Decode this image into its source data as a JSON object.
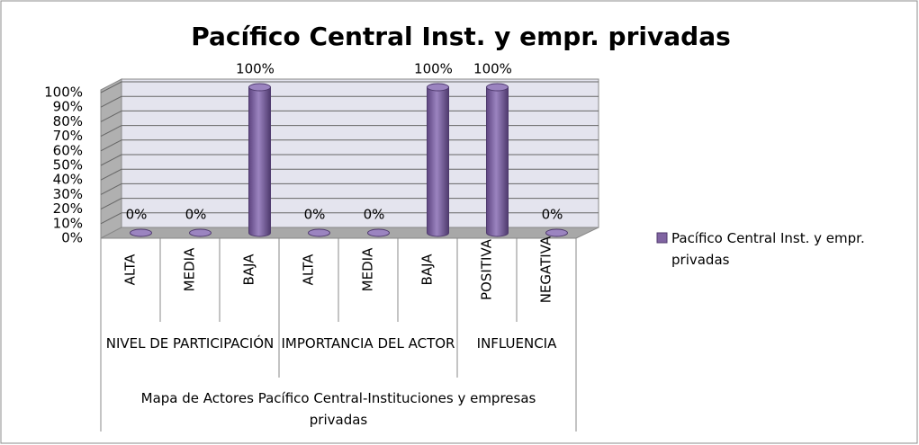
{
  "chart_data": {
    "type": "bar3d",
    "title": "Pacífico Central Inst. y empr. privadas",
    "groups": [
      {
        "label": "NIVEL DE PARTICIPACIÓN",
        "categories": [
          "ALTA",
          "MEDIA",
          "BAJA"
        ]
      },
      {
        "label": "IMPORTANCIA DEL ACTOR",
        "categories": [
          "ALTA",
          "MEDIA",
          "BAJA"
        ]
      },
      {
        "label": "INFLUENCIA",
        "categories": [
          "POSITIVA",
          "NEGATIVA"
        ]
      }
    ],
    "outer_group": "Mapa de Actores Pacífico Central-Instituciones y empresas privadas",
    "series": [
      {
        "name": "Pacífico Central Inst. y empr. privadas",
        "color": "#8064a2",
        "values": [
          0,
          0,
          100,
          0,
          0,
          100,
          100,
          0
        ],
        "value_labels": [
          "0%",
          "0%",
          "100%",
          "0%",
          "0%",
          "100%",
          "100%",
          "0%"
        ]
      }
    ],
    "ylim": [
      0,
      100
    ],
    "yticks": [
      {
        "value": 0,
        "label": "0%"
      },
      {
        "value": 10,
        "label": "10%"
      },
      {
        "value": 20,
        "label": "20%"
      },
      {
        "value": 30,
        "label": "30%"
      },
      {
        "value": 40,
        "label": "40%"
      },
      {
        "value": 50,
        "label": "50%"
      },
      {
        "value": 60,
        "label": "60%"
      },
      {
        "value": 70,
        "label": "70%"
      },
      {
        "value": 80,
        "label": "80%"
      },
      {
        "value": 90,
        "label": "90%"
      },
      {
        "value": 100,
        "label": "100%"
      }
    ],
    "grid": true,
    "legend": "right"
  }
}
